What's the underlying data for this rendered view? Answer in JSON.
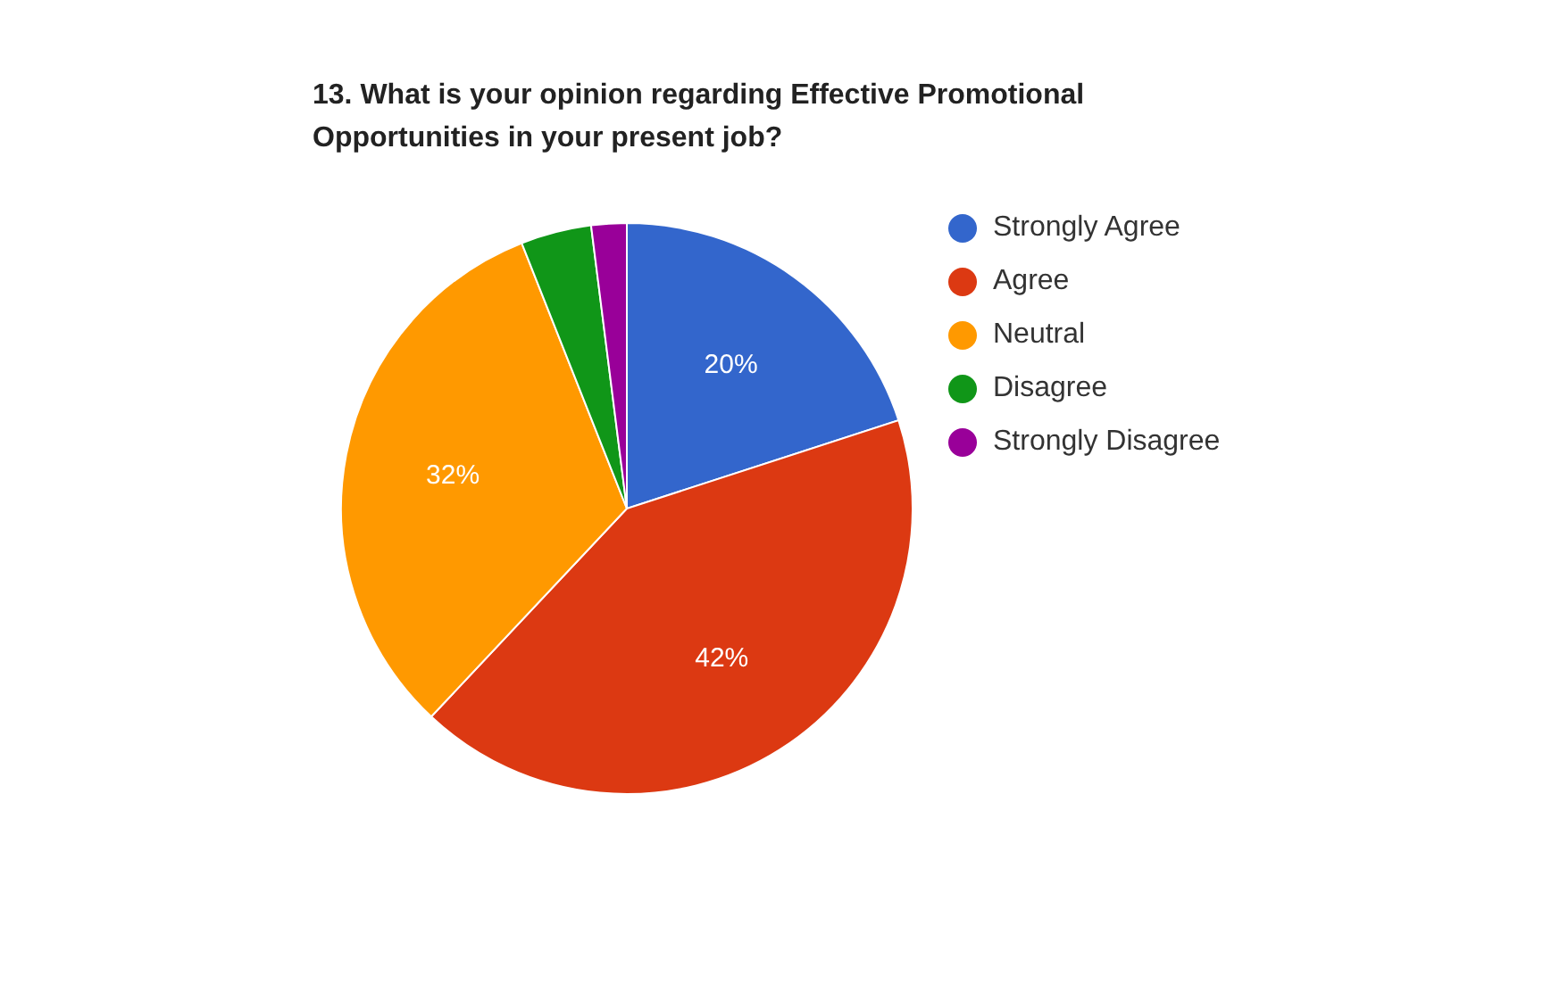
{
  "chart_data": {
    "type": "pie",
    "title": "13. What is your opinion regarding Effective Promotional Opportunities in your present job?",
    "categories": [
      "Strongly Agree",
      "Agree",
      "Neutral",
      "Disagree",
      "Strongly Disagree"
    ],
    "values": [
      20,
      42,
      32,
      4,
      2
    ],
    "colors": [
      "#3366cc",
      "#dc3912",
      "#ff9900",
      "#109618",
      "#990099"
    ],
    "value_labels": [
      "20%",
      "42%",
      "32%",
      null,
      null
    ],
    "legend": "top right"
  }
}
